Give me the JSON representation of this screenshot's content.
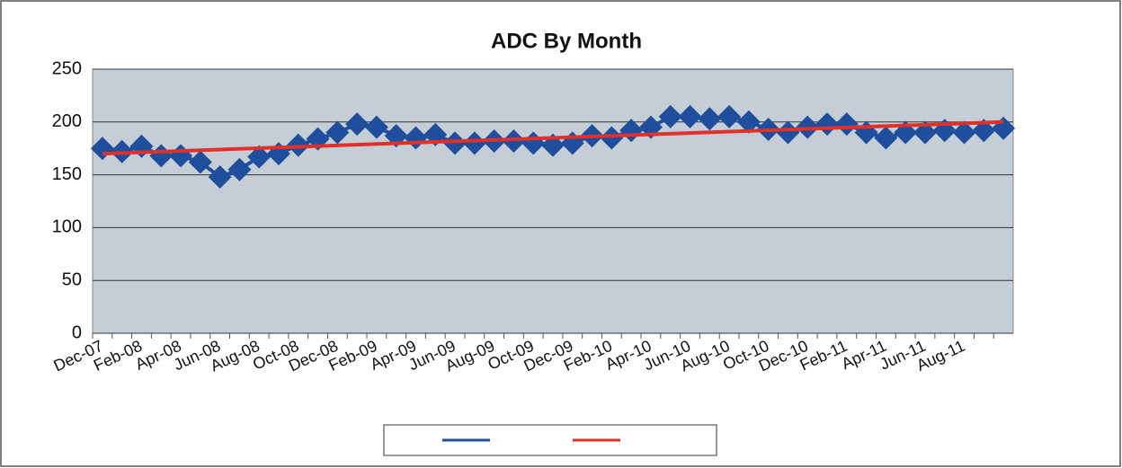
{
  "chart_data": {
    "type": "line",
    "title": "ADC By Month",
    "categories": [
      "Dec-07",
      null,
      "Feb-08",
      null,
      "Apr-08",
      null,
      "Jun-08",
      null,
      "Aug-08",
      null,
      "Oct-08",
      null,
      "Dec-08",
      null,
      "Feb-09",
      null,
      "Apr-09",
      null,
      "Jun-09",
      null,
      "Aug-09",
      null,
      "Oct-09",
      null,
      "Dec-09",
      null,
      "Feb-10",
      null,
      "Apr-10",
      null,
      "Jun-10",
      null,
      "Aug-10",
      null,
      "Oct-10",
      null,
      "Dec-10",
      null,
      "Feb-11",
      null,
      "Apr-11",
      null,
      "Jun-11",
      null,
      "Aug-11",
      null,
      null
    ],
    "series": [
      {
        "color": "#1f4e9c",
        "values": [
          175,
          172,
          177,
          168,
          168,
          162,
          148,
          155,
          167,
          170,
          178,
          184,
          190,
          198,
          195,
          187,
          185,
          188,
          180,
          180,
          182,
          182,
          180,
          178,
          180,
          187,
          185,
          192,
          195,
          205,
          205,
          203,
          205,
          200,
          193,
          190,
          195,
          198,
          198,
          190,
          185,
          190,
          190,
          192,
          190,
          192,
          194
        ]
      }
    ],
    "trendline": {
      "color": "#e0302a",
      "values": [
        170,
        200
      ]
    },
    "ylim": [
      0,
      250
    ],
    "yticks": [
      0,
      50,
      100,
      150,
      200,
      250
    ],
    "grid": true
  }
}
